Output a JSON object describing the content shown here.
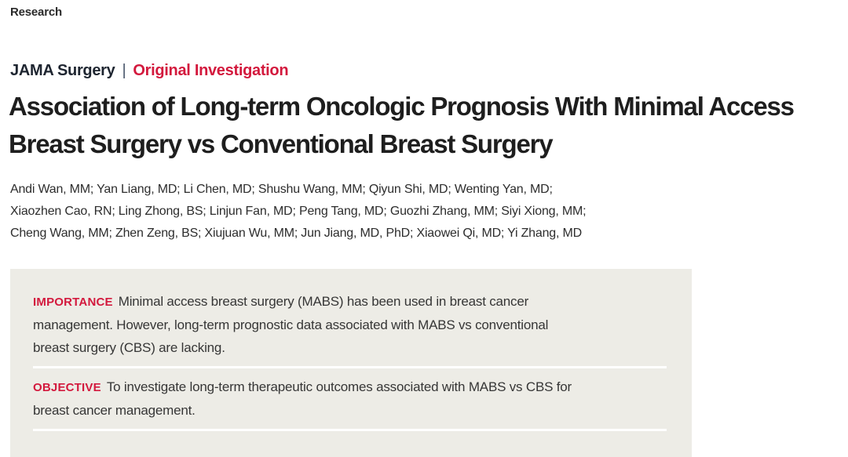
{
  "page": {
    "section_label": "Research"
  },
  "header": {
    "journal_name": "JAMA Surgery",
    "divider": "|",
    "article_type": "Original Investigation"
  },
  "title": {
    "lines": [
      "Association of Long-term Oncologic Prognosis With Minimal Access",
      "Breast Surgery vs Conventional Breast Surgery"
    ]
  },
  "authors": {
    "lines": [
      "Andi Wan, MM; Yan Liang, MD; Li Chen, MD; Shushu Wang, MM; Qiyun Shi, MD; Wenting Yan, MD;",
      "Xiaozhen Cao, RN; Ling Zhong, BS; Linjun Fan, MD; Peng Tang, MD; Guozhi Zhang, MM; Siyi Xiong, MM;",
      "Cheng Wang, MM; Zhen Zeng, BS; Xiujuan Wu, MM; Jun Jiang, MD, PhD; Xiaowei Qi, MD; Yi Zhang, MD"
    ]
  },
  "abstract": {
    "sections": [
      {
        "label": "IMPORTANCE",
        "lines": [
          "Minimal access breast surgery (MABS) has been used in breast cancer",
          "management. However, long-term prognostic data associated with MABS vs conventional",
          "breast surgery (CBS) are lacking."
        ]
      },
      {
        "label": "OBJECTIVE",
        "lines": [
          "To investigate long-term therapeutic outcomes associated with MABS vs CBS for",
          "breast cancer management."
        ]
      }
    ]
  },
  "colors": {
    "accent_red": "#d3193d",
    "abstract_background": "#edece6",
    "title_text": "#1e1e1e",
    "divider_white": "#ffffff"
  }
}
